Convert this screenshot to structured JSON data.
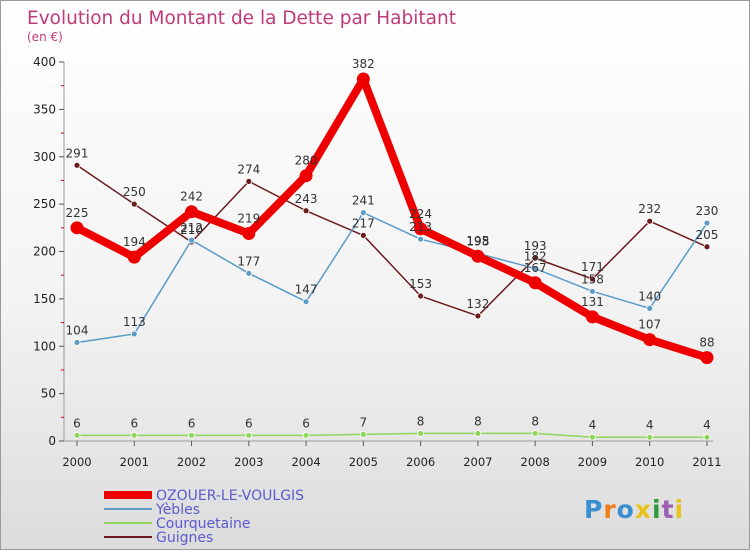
{
  "chart_data": {
    "type": "line",
    "title": "Evolution du Montant de la Dette par Habitant",
    "subtitle": "(en €)",
    "xlabel": "",
    "ylabel": "",
    "categories": [
      "2000",
      "2001",
      "2002",
      "2003",
      "2004",
      "2005",
      "2006",
      "2007",
      "2008",
      "2009",
      "2010",
      "2011"
    ],
    "ylim": [
      0,
      400
    ],
    "yticks": [
      "0",
      "50",
      "100",
      "150",
      "200",
      "250",
      "300",
      "350",
      "400"
    ],
    "grid": false,
    "legend": "bottom-left",
    "series": [
      {
        "name": "Guignes",
        "color": "#6b1a1e",
        "values": [
          291,
          250,
          210,
          274,
          243,
          217,
          153,
          132,
          193,
          171,
          232,
          205
        ],
        "labels": [
          "291",
          "250",
          "210",
          "274",
          "243",
          "217",
          "153",
          "132",
          "193",
          "171",
          "232",
          "205"
        ]
      },
      {
        "name": "Yèbles",
        "color": "#5b9bc8",
        "values": [
          104,
          113,
          212,
          177,
          147,
          241,
          213,
          198,
          182,
          158,
          140,
          230
        ],
        "labels": [
          "104",
          "113",
          "212",
          "177",
          "147",
          "241",
          "213",
          "198",
          "182",
          "158",
          "140",
          "230"
        ]
      },
      {
        "name": "Courquetaine",
        "color": "#8ed65c",
        "values": [
          6,
          6,
          6,
          6,
          6,
          7,
          8,
          8,
          8,
          4,
          4,
          4
        ],
        "labels": [
          "6",
          "6",
          "6",
          "6",
          "6",
          "7",
          "8",
          "8",
          "8",
          "4",
          "4",
          "4"
        ]
      },
      {
        "name": "OZOUER-LE-VOULGIS",
        "color": "#ee0000",
        "values": [
          225,
          194,
          242,
          219,
          280,
          382,
          224,
          195,
          167,
          131,
          107,
          88
        ],
        "labels": [
          "225",
          "194",
          "242",
          "219",
          "280",
          "382",
          "224",
          "195",
          "167",
          "131",
          "107",
          "88"
        ]
      }
    ],
    "legend_order": [
      "OZOUER-LE-VOULGIS",
      "Yèbles",
      "Courquetaine",
      "Guignes"
    ]
  },
  "branding": {
    "logo_text": "Proxiti",
    "logo_colors": [
      "#3a8fd0",
      "#f07d1a",
      "#3a8fd0",
      "#e8c31c",
      "#2f9a3a",
      "#9c5fb0",
      "#e8c31c"
    ]
  }
}
